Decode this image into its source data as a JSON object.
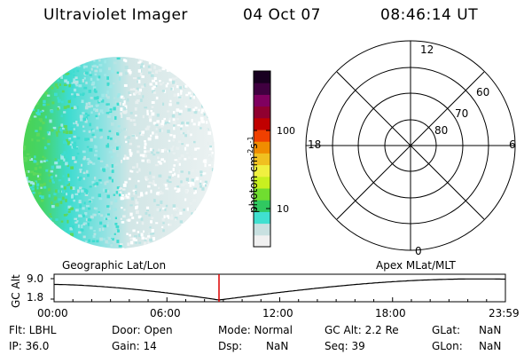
{
  "header": {
    "title": "Ultraviolet Imager",
    "date": "04 Oct 07",
    "time": "08:46:14 UT"
  },
  "colorbar": {
    "label": "photon cm^-2 s^-1",
    "label_main": "photon cm",
    "label_exp1": "-2",
    "label_mid": "s",
    "label_exp2": "-1",
    "ticks": [
      "100",
      "10"
    ],
    "colors": [
      "#f0f0f0",
      "#c8e0e0",
      "#40e0d0",
      "#30c860",
      "#70dd30",
      "#c8f020",
      "#f0f040",
      "#f0c020",
      "#f08c00",
      "#f04000",
      "#c00000",
      "#900030",
      "#800060",
      "#400040",
      "#180020"
    ]
  },
  "polar": {
    "mlt_labels": {
      "top": "12",
      "left": "18",
      "right": "6",
      "bottom": "0"
    },
    "lat_labels": [
      "60",
      "70",
      "80"
    ]
  },
  "timeline": {
    "left_label": "Geographic Lat/Lon",
    "right_label": "Apex MLat/MLT",
    "axis_title": "GC Alt",
    "y_ticks": [
      "9.0",
      "1.8"
    ],
    "x_ticks": [
      "00:00",
      "06:00",
      "12:00",
      "18:00",
      "23:59"
    ],
    "current_time_hours": 8.77
  },
  "footer": {
    "flt": "Flt: LBHL",
    "ip": "IP: 36.0",
    "door": "Door: Open",
    "gain": "Gain: 14",
    "mode": "Mode: Normal",
    "dsp_label": "Dsp:",
    "dsp_value": "NaN",
    "gc_alt": "GC Alt: 2.2 Re",
    "seq": "Seq: 39",
    "glat_label": "GLat:",
    "glat_value": "NaN",
    "glon_label": "GLon:",
    "glon_value": "NaN"
  },
  "colors": {
    "marker": "#dd0000",
    "disk_green": "#4cd24c",
    "disk_cyan": "#3edcd0",
    "disk_light": "#d2e6e6"
  }
}
